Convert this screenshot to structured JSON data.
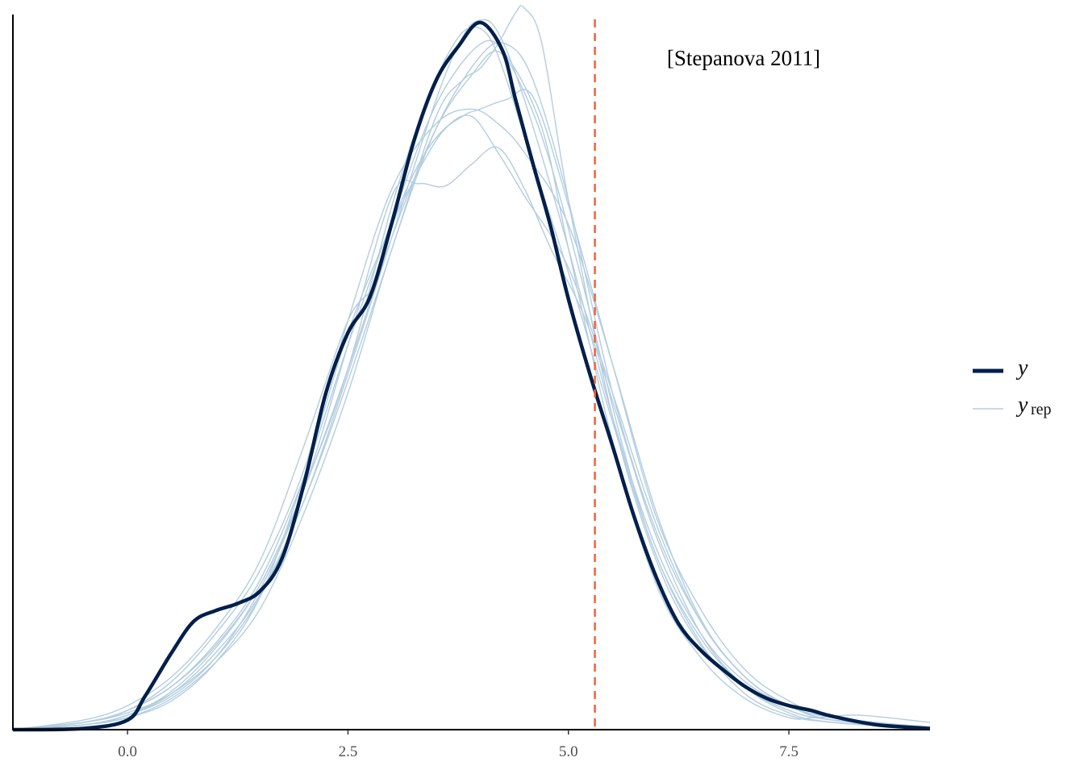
{
  "chart_data": {
    "type": "line",
    "title": "",
    "xlabel": "",
    "ylabel": "",
    "xlim": [
      -1.3,
      9.1
    ],
    "ylim": [
      0,
      0.3
    ],
    "x_ticks": [
      "0.0",
      "2.5",
      "5.0",
      "7.5"
    ],
    "x_tick_values": [
      0,
      2.5,
      5.0,
      7.5
    ],
    "y_ticks_shown": false,
    "grid": false,
    "annotation": "[Stepanova 2011]",
    "reference_line": {
      "x": 5.3,
      "color": "#f4623a",
      "style": "dashed"
    },
    "legend": {
      "placement": "right",
      "y_label": "y",
      "yrep_label": "y",
      "yrep_sub": "rep"
    },
    "colors": {
      "y": "#011f4b",
      "yrep": "#b3cde0"
    },
    "y": {
      "x": [
        -1.3,
        -0.5,
        0.0,
        0.2,
        0.5,
        0.75,
        1.0,
        1.25,
        1.5,
        1.75,
        2.0,
        2.25,
        2.5,
        2.75,
        3.0,
        3.25,
        3.5,
        3.75,
        4.0,
        4.25,
        4.4,
        4.6,
        4.8,
        5.0,
        5.25,
        5.5,
        5.75,
        6.0,
        6.25,
        6.5,
        6.75,
        7.0,
        7.25,
        7.5,
        7.75,
        8.0,
        8.5,
        9.1
      ],
      "values": [
        0,
        0.0005,
        0.004,
        0.014,
        0.032,
        0.045,
        0.0495,
        0.0525,
        0.0575,
        0.071,
        0.102,
        0.14,
        0.165,
        0.18,
        0.211,
        0.245,
        0.27,
        0.284,
        0.294,
        0.2825,
        0.262,
        0.235,
        0.209,
        0.179,
        0.147,
        0.118,
        0.088,
        0.063,
        0.044,
        0.033,
        0.025,
        0.018,
        0.013,
        0.01,
        0.008,
        0.0055,
        0.002,
        0.0005
      ]
    },
    "yrep": [
      {
        "x": [
          -1.3,
          -0.5,
          0,
          0.5,
          1,
          1.5,
          2,
          2.5,
          3,
          3.5,
          3.8,
          4.0,
          4.2,
          4.4,
          4.5,
          4.7,
          5,
          5.5,
          6,
          6.5,
          7,
          7.5,
          8,
          9.1
        ],
        "values": [
          0,
          0.002,
          0.006,
          0.015,
          0.032,
          0.056,
          0.095,
          0.145,
          0.2,
          0.255,
          0.27,
          0.275,
          0.285,
          0.298,
          0.3,
          0.285,
          0.22,
          0.13,
          0.07,
          0.035,
          0.018,
          0.008,
          0.004,
          0.001
        ]
      },
      {
        "x": [
          -1.3,
          -0.5,
          0,
          0.5,
          1,
          1.5,
          2,
          2.5,
          3,
          3.4,
          3.7,
          3.9,
          4.1,
          4.3,
          4.6,
          5,
          5.5,
          6,
          6.5,
          7,
          7.5,
          8,
          9.1
        ],
        "values": [
          0,
          0.003,
          0.008,
          0.018,
          0.035,
          0.06,
          0.1,
          0.15,
          0.218,
          0.262,
          0.285,
          0.292,
          0.288,
          0.27,
          0.235,
          0.19,
          0.128,
          0.072,
          0.036,
          0.015,
          0.006,
          0.003,
          0.0005
        ]
      },
      {
        "x": [
          -1.3,
          -0.5,
          0,
          0.5,
          1,
          1.5,
          2,
          2.5,
          3,
          3.5,
          3.8,
          4.0,
          4.2,
          4.5,
          5,
          5.5,
          6,
          6.5,
          7,
          7.5,
          8,
          9.1
        ],
        "values": [
          0,
          0.003,
          0.007,
          0.015,
          0.03,
          0.055,
          0.095,
          0.148,
          0.205,
          0.262,
          0.288,
          0.295,
          0.29,
          0.262,
          0.2,
          0.13,
          0.075,
          0.04,
          0.02,
          0.01,
          0.004,
          0.001
        ]
      },
      {
        "x": [
          -1.3,
          -0.5,
          0,
          0.5,
          1,
          1.5,
          2,
          2.5,
          3,
          3.5,
          3.8,
          4.0,
          4.3,
          4.6,
          5,
          5.5,
          6,
          6.5,
          7,
          7.5,
          8,
          9.1
        ],
        "values": [
          0,
          0.002,
          0.005,
          0.012,
          0.028,
          0.055,
          0.105,
          0.165,
          0.21,
          0.245,
          0.255,
          0.258,
          0.262,
          0.263,
          0.218,
          0.152,
          0.088,
          0.05,
          0.025,
          0.012,
          0.005,
          0.001
        ]
      },
      {
        "x": [
          -1.3,
          -0.5,
          0,
          0.5,
          1,
          1.5,
          2,
          2.5,
          3,
          3.5,
          3.9,
          4.2,
          4.5,
          5,
          5.5,
          6,
          6.5,
          7,
          7.5,
          8,
          9.1
        ],
        "values": [
          0,
          0.003,
          0.008,
          0.02,
          0.04,
          0.066,
          0.108,
          0.17,
          0.225,
          0.252,
          0.258,
          0.252,
          0.24,
          0.21,
          0.152,
          0.09,
          0.046,
          0.022,
          0.01,
          0.004,
          0.0005
        ]
      },
      {
        "x": [
          -1.3,
          -0.5,
          0,
          0.5,
          1,
          1.5,
          2,
          2.5,
          3,
          3.3,
          3.6,
          3.9,
          4.2,
          4.5,
          4.8,
          5.2,
          5.6,
          6,
          6.5,
          7,
          7.5,
          8,
          9.1
        ],
        "values": [
          0,
          0.002,
          0.006,
          0.014,
          0.03,
          0.058,
          0.1,
          0.16,
          0.222,
          0.227,
          0.226,
          0.235,
          0.242,
          0.225,
          0.2,
          0.17,
          0.125,
          0.08,
          0.04,
          0.018,
          0.007,
          0.003,
          0.0005
        ]
      },
      {
        "x": [
          -1.3,
          -0.5,
          0,
          0.5,
          1,
          1.5,
          2,
          2.5,
          2.8,
          3,
          3.3,
          3.6,
          3.9,
          4.2,
          4.5,
          5,
          5.5,
          6,
          6.5,
          7,
          7.5,
          8,
          9.1
        ],
        "values": [
          0,
          0.004,
          0.01,
          0.022,
          0.042,
          0.07,
          0.118,
          0.17,
          0.185,
          0.21,
          0.235,
          0.25,
          0.255,
          0.24,
          0.222,
          0.192,
          0.14,
          0.085,
          0.045,
          0.022,
          0.01,
          0.004,
          0.001
        ]
      },
      {
        "x": [
          -1.3,
          -0.5,
          0,
          0.5,
          1,
          1.5,
          2,
          2.5,
          3,
          3.5,
          4,
          4.3,
          4.6,
          5,
          5.5,
          6,
          6.5,
          7,
          7.5,
          8,
          9.1
        ],
        "values": [
          0,
          0.002,
          0.005,
          0.013,
          0.028,
          0.05,
          0.09,
          0.14,
          0.2,
          0.25,
          0.28,
          0.285,
          0.27,
          0.22,
          0.14,
          0.082,
          0.045,
          0.022,
          0.01,
          0.005,
          0.001
        ]
      },
      {
        "x": [
          -1.3,
          -0.5,
          0,
          0.5,
          1,
          1.5,
          2,
          2.5,
          3,
          3.5,
          4,
          4.3,
          4.7,
          5,
          5.5,
          6,
          6.5,
          7,
          7.5,
          7.8,
          8.3,
          9.1
        ],
        "values": [
          0,
          0.003,
          0.008,
          0.018,
          0.036,
          0.062,
          0.105,
          0.16,
          0.212,
          0.26,
          0.285,
          0.28,
          0.25,
          0.2,
          0.12,
          0.06,
          0.03,
          0.013,
          0.005,
          0.005,
          0.006,
          0.003
        ]
      },
      {
        "x": [
          -1.3,
          -0.5,
          0,
          0.5,
          1,
          1.5,
          2,
          2.5,
          3,
          3.5,
          3.9,
          4.2,
          4.5,
          4.8,
          5.2,
          5.6,
          6,
          6.5,
          7,
          7.5,
          8,
          9.1
        ],
        "values": [
          0,
          0.002,
          0.006,
          0.016,
          0.034,
          0.06,
          0.1,
          0.15,
          0.205,
          0.25,
          0.272,
          0.282,
          0.265,
          0.235,
          0.18,
          0.12,
          0.072,
          0.038,
          0.018,
          0.008,
          0.004,
          0.001
        ]
      }
    ]
  }
}
